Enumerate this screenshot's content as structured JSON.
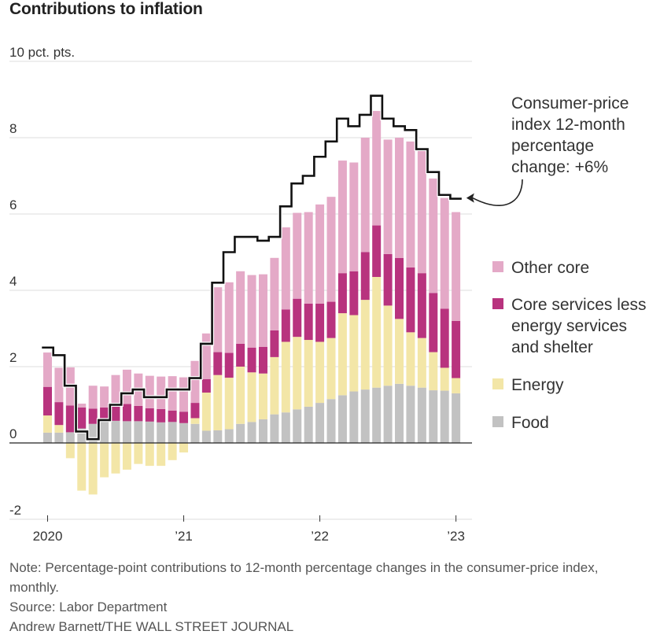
{
  "title": "Contributions to inflation",
  "chart_data": {
    "type": "bar",
    "stacked": true,
    "y_unit_label": "10 pct. pts.",
    "ylim": [
      -2,
      10
    ],
    "y_ticks": [
      {
        "value": 10,
        "label": "10 pct. pts."
      },
      {
        "value": 8,
        "label": "8"
      },
      {
        "value": 6,
        "label": "6"
      },
      {
        "value": 4,
        "label": "4"
      },
      {
        "value": 2,
        "label": "2"
      },
      {
        "value": 0,
        "label": "0"
      },
      {
        "value": -2,
        "label": "-2"
      }
    ],
    "x_ticks": [
      {
        "index": 0,
        "label": "2020"
      },
      {
        "index": 12,
        "label": "’21"
      },
      {
        "index": 24,
        "label": "’22"
      },
      {
        "index": 36,
        "label": "’23"
      }
    ],
    "months": [
      "2020-01",
      "2020-02",
      "2020-03",
      "2020-04",
      "2020-05",
      "2020-06",
      "2020-07",
      "2020-08",
      "2020-09",
      "2020-10",
      "2020-11",
      "2020-12",
      "2021-01",
      "2021-02",
      "2021-03",
      "2021-04",
      "2021-05",
      "2021-06",
      "2021-07",
      "2021-08",
      "2021-09",
      "2021-10",
      "2021-11",
      "2021-12",
      "2022-01",
      "2022-02",
      "2022-03",
      "2022-04",
      "2022-05",
      "2022-06",
      "2022-07",
      "2022-08",
      "2022-09",
      "2022-10",
      "2022-11",
      "2022-12",
      "2023-01"
    ],
    "series": [
      {
        "name": "Food",
        "color": "#c2c2c2",
        "values": [
          0.27,
          0.27,
          0.28,
          0.38,
          0.5,
          0.58,
          0.58,
          0.57,
          0.57,
          0.56,
          0.54,
          0.55,
          0.52,
          0.5,
          0.32,
          0.33,
          0.36,
          0.5,
          0.55,
          0.62,
          0.75,
          0.8,
          0.88,
          0.95,
          1.05,
          1.15,
          1.25,
          1.35,
          1.4,
          1.45,
          1.5,
          1.55,
          1.5,
          1.45,
          1.38,
          1.37,
          1.3
        ]
      },
      {
        "name": "Energy",
        "color": "#f3e6a7",
        "values": [
          0.45,
          0.2,
          -0.4,
          -1.25,
          -1.35,
          -0.9,
          -0.8,
          -0.7,
          -0.55,
          -0.6,
          -0.6,
          -0.45,
          -0.25,
          0.15,
          1.0,
          1.45,
          1.35,
          1.5,
          1.3,
          1.2,
          1.5,
          1.85,
          1.9,
          1.75,
          1.6,
          1.6,
          2.15,
          2.0,
          2.35,
          2.9,
          2.1,
          1.7,
          1.4,
          1.3,
          1.0,
          0.6,
          0.4
        ]
      },
      {
        "name": "Core services less energy services and shelter",
        "color": "#b8337e",
        "values": [
          0.75,
          0.6,
          0.7,
          0.55,
          0.4,
          0.35,
          0.4,
          0.45,
          0.4,
          0.35,
          0.35,
          0.3,
          0.3,
          0.4,
          0.35,
          0.6,
          0.65,
          0.6,
          0.65,
          0.7,
          0.7,
          0.85,
          1.0,
          0.95,
          1.0,
          0.95,
          1.05,
          1.15,
          1.25,
          1.35,
          1.35,
          1.6,
          1.7,
          1.7,
          1.55,
          1.55,
          1.5
        ]
      },
      {
        "name": "Other core",
        "color": "#e4a9c7",
        "values": [
          0.9,
          0.9,
          1.0,
          0.1,
          0.6,
          0.55,
          0.8,
          0.9,
          0.85,
          0.85,
          0.85,
          0.9,
          0.9,
          1.1,
          1.2,
          1.7,
          1.85,
          1.9,
          1.9,
          1.9,
          1.9,
          2.15,
          2.25,
          2.4,
          2.6,
          2.75,
          2.95,
          2.85,
          3.0,
          3.0,
          3.0,
          3.15,
          3.3,
          3.3,
          3.0,
          2.9,
          2.85
        ]
      }
    ],
    "total_line": {
      "name": "Consumer-price index 12-month percentage change",
      "color": "#111111",
      "values": [
        2.5,
        2.3,
        1.5,
        0.3,
        0.1,
        0.6,
        1.0,
        1.3,
        1.4,
        1.2,
        1.2,
        1.4,
        1.4,
        1.7,
        2.6,
        4.2,
        5.0,
        5.4,
        5.4,
        5.3,
        5.4,
        6.2,
        6.8,
        7.0,
        7.5,
        7.9,
        8.5,
        8.3,
        8.6,
        9.1,
        8.5,
        8.3,
        8.2,
        7.7,
        7.1,
        6.5,
        6.4
      ]
    },
    "annotation": {
      "lines": [
        "Consumer-price",
        "index 12-month",
        "percentage",
        "change: +6%"
      ]
    },
    "legend": [
      {
        "lines": [
          "Other core"
        ],
        "color": "#e4a9c7"
      },
      {
        "lines": [
          "Core services less",
          "energy services",
          "and shelter"
        ],
        "color": "#b8337e"
      },
      {
        "lines": [
          "Energy"
        ],
        "color": "#f3e6a7"
      },
      {
        "lines": [
          "Food"
        ],
        "color": "#c2c2c2"
      }
    ],
    "legend_placement": "right",
    "grid": true
  },
  "notes": {
    "note": "Note: Percentage-point contributions to 12-month percentage changes in the consumer-price index, monthly.",
    "source": "Source: Labor Department",
    "credit": "Andrew Barnett/THE WALL STREET JOURNAL"
  }
}
